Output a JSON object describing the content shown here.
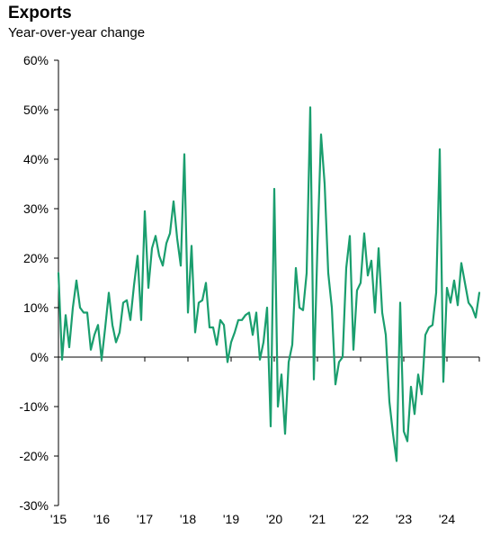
{
  "chart_data": {
    "type": "line",
    "title": "Exports",
    "subtitle": "Year-over-year change",
    "xlabel": "",
    "ylabel": "",
    "ylim": [
      -30,
      60
    ],
    "y_ticks": [
      -30,
      -20,
      -10,
      0,
      10,
      20,
      30,
      40,
      50,
      60
    ],
    "y_tick_labels": [
      "-30%",
      "-20%",
      "-10%",
      "0%",
      "10%",
      "20%",
      "30%",
      "40%",
      "50%",
      "60%"
    ],
    "x_ticks": [
      2015,
      2016,
      2017,
      2018,
      2019,
      2020,
      2021,
      2022,
      2023,
      2024
    ],
    "x_tick_labels": [
      "'15",
      "'16",
      "'17",
      "'18",
      "'19",
      "'20",
      "'21",
      "'22",
      "'23",
      "'24"
    ],
    "grid": false,
    "line_color": "#1a9e6e",
    "series": [
      {
        "x_start": "2015-01",
        "frequency": "monthly",
        "values": [
          17,
          -0.5,
          8.5,
          2,
          10,
          15.5,
          10,
          9,
          9,
          1.5,
          4.5,
          6.5,
          -0.5,
          6,
          13,
          6.5,
          3,
          5,
          11,
          11.5,
          7.5,
          14.5,
          20.5,
          7.5,
          29.5,
          14,
          22,
          24.5,
          20.5,
          18.5,
          23,
          25,
          31.5,
          24,
          18.5,
          41,
          9,
          22.5,
          5,
          11,
          11.5,
          15,
          6,
          6,
          2.5,
          7.5,
          6.5,
          -1,
          3,
          5,
          7.5,
          7.5,
          8.5,
          9,
          4.5,
          9,
          -0.5,
          3,
          10,
          -14,
          34,
          -10,
          -3.5,
          -15.5,
          -1,
          2.5,
          18,
          10,
          9.5,
          17,
          50.5,
          -4.5,
          22.5,
          45,
          35,
          17,
          10,
          -5.5,
          -1,
          0,
          18,
          24.5,
          1.5,
          13.5,
          15,
          25,
          16.5,
          19.5,
          9,
          22,
          9,
          4.5,
          -9,
          -15.5,
          -21,
          11,
          -15,
          -17,
          -6,
          -11.5,
          -3.5,
          -7.5,
          4.5,
          6,
          6.5,
          13,
          42,
          -5,
          14,
          11,
          15.5,
          10.5,
          19,
          15,
          11,
          10,
          8,
          13
        ]
      }
    ]
  }
}
